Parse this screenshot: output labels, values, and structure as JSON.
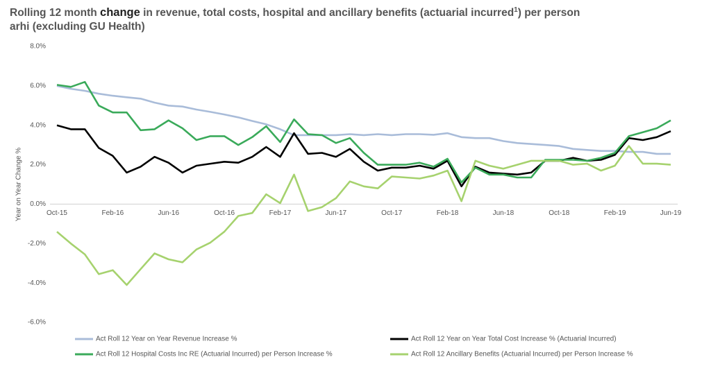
{
  "chart_data": {
    "type": "line",
    "title": {
      "line1": [
        "Rolling 12 month ",
        "change",
        " in revenue, total costs, hospital and ancillary benefits (actuarial incurred",
        "1",
        ") per person"
      ],
      "line2": "arhi (excluding GU Health)"
    },
    "y_label": "Year on Year Change %",
    "categories": [
      "Oct-15",
      null,
      null,
      null,
      "Feb-16",
      null,
      null,
      null,
      "Jun-16",
      null,
      null,
      null,
      "Oct-16",
      null,
      null,
      null,
      "Feb-17",
      null,
      null,
      null,
      "Jun-17",
      null,
      null,
      null,
      "Oct-17",
      null,
      null,
      null,
      "Feb-18",
      null,
      null,
      null,
      "Jun-18",
      null,
      null,
      null,
      "Oct-18",
      null,
      null,
      null,
      "Feb-19",
      null,
      null,
      null,
      "Jun-19"
    ],
    "ylim": [
      -6,
      8
    ],
    "yticks": [
      {
        "value": -6,
        "label": "-6.0%"
      },
      {
        "value": -4,
        "label": "-4.0%"
      },
      {
        "value": -2,
        "label": "-2.0%"
      },
      {
        "value": 0,
        "label": "0.0%"
      },
      {
        "value": 2,
        "label": "2.0%"
      },
      {
        "value": 4,
        "label": "4.0%"
      },
      {
        "value": 6,
        "label": "6.0%"
      },
      {
        "value": 8,
        "label": "8.0%"
      }
    ],
    "grid": false,
    "legend": "bottom",
    "series": [
      {
        "name": "Act Roll 12 Year on Year Revenue Increase %",
        "color": "#a9bcd9",
        "values": [
          6.0,
          5.85,
          5.75,
          5.6,
          5.5,
          5.42,
          5.35,
          5.15,
          5.0,
          4.95,
          4.8,
          4.68,
          4.55,
          4.4,
          4.22,
          4.05,
          3.8,
          3.5,
          3.5,
          3.5,
          3.5,
          3.55,
          3.5,
          3.55,
          3.5,
          3.55,
          3.55,
          3.52,
          3.6,
          3.4,
          3.35,
          3.35,
          3.2,
          3.1,
          3.05,
          3.0,
          2.95,
          2.8,
          2.75,
          2.7,
          2.7,
          2.65,
          2.65,
          2.55,
          2.55
        ]
      },
      {
        "name": "Act Roll 12 Year on Year Total Cost Increase % (Actuarial Incurred)",
        "color": "#000000",
        "values": [
          4.0,
          3.8,
          3.8,
          2.85,
          2.45,
          1.6,
          1.9,
          2.4,
          2.1,
          1.6,
          1.95,
          2.05,
          2.15,
          2.1,
          2.4,
          2.9,
          2.4,
          3.6,
          2.55,
          2.6,
          2.4,
          2.8,
          2.15,
          1.7,
          1.85,
          1.85,
          1.95,
          1.8,
          2.2,
          0.9,
          1.9,
          1.6,
          1.55,
          1.5,
          1.6,
          2.2,
          2.2,
          2.35,
          2.2,
          2.25,
          2.5,
          3.35,
          3.25,
          3.4,
          3.7
        ]
      },
      {
        "name": "Act Roll 12 Hospital Costs Inc RE (Actuarial Incurred) per Person Increase %",
        "color": "#3aaa5a",
        "values": [
          6.05,
          5.95,
          6.2,
          5.0,
          4.65,
          4.65,
          3.75,
          3.8,
          4.25,
          3.85,
          3.25,
          3.45,
          3.45,
          3.0,
          3.4,
          3.95,
          3.15,
          4.3,
          3.55,
          3.5,
          3.1,
          3.35,
          2.6,
          2.0,
          2.0,
          2.0,
          2.1,
          1.9,
          2.3,
          1.1,
          1.85,
          1.5,
          1.5,
          1.35,
          1.35,
          2.25,
          2.25,
          2.25,
          2.2,
          2.35,
          2.6,
          3.45,
          3.65,
          3.85,
          4.25
        ]
      },
      {
        "name": "Act Roll 12 Ancillary Benefits (Actuarial Incurred) per Person Increase %",
        "color": "#a6d26e",
        "values": [
          -1.4,
          -2.0,
          -2.55,
          -3.55,
          -3.35,
          -4.1,
          -3.3,
          -2.5,
          -2.8,
          -2.95,
          -2.3,
          -1.95,
          -1.4,
          -0.6,
          -0.45,
          0.5,
          0.05,
          1.5,
          -0.35,
          -0.15,
          0.3,
          1.15,
          0.9,
          0.8,
          1.4,
          1.35,
          1.3,
          1.45,
          1.7,
          0.15,
          2.2,
          1.95,
          1.8,
          2.0,
          2.2,
          2.2,
          2.2,
          2.0,
          2.05,
          1.7,
          1.95,
          2.95,
          2.05,
          2.05,
          2.0
        ]
      }
    ]
  }
}
